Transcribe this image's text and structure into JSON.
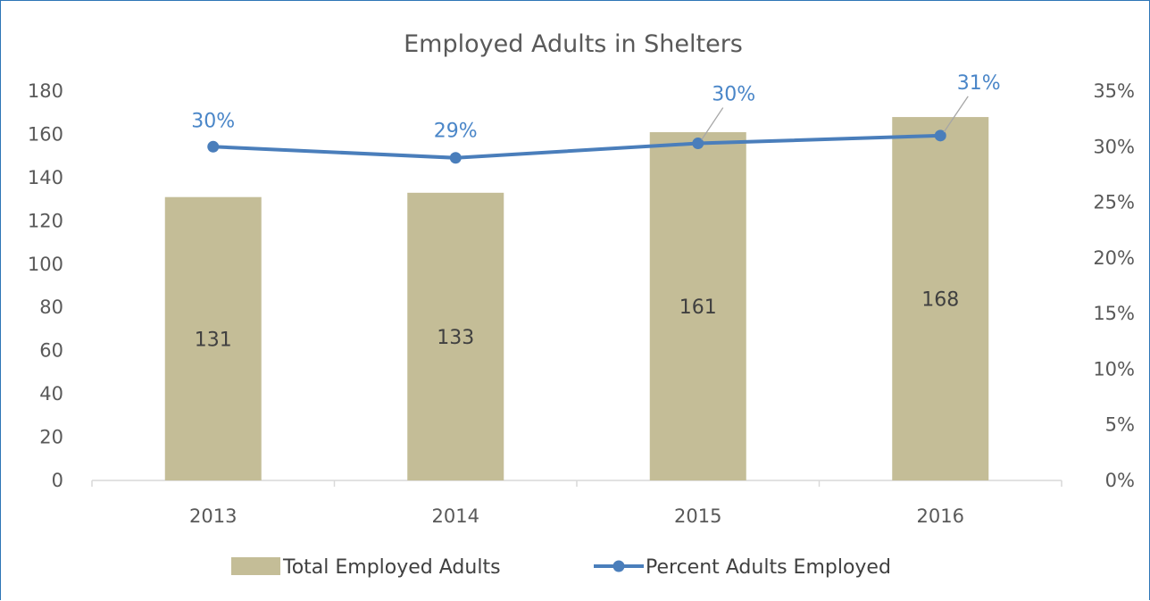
{
  "chart_data": {
    "type": "bar",
    "title": "Employed Adults in Shelters",
    "categories": [
      "2013",
      "2014",
      "2015",
      "2016"
    ],
    "series": [
      {
        "name": "Total Employed Adults",
        "kind": "bar",
        "axis": "left",
        "values": [
          131,
          133,
          161,
          168
        ],
        "labels": [
          "131",
          "133",
          "161",
          "168"
        ],
        "color": "#c4bd97"
      },
      {
        "name": "Percent Adults Employed",
        "kind": "line",
        "axis": "right",
        "values": [
          0.3,
          0.29,
          0.303,
          0.31
        ],
        "labels": [
          "30%",
          "29%",
          "30%",
          "31%"
        ],
        "color": "#4a7ebb"
      }
    ],
    "y_left": {
      "min": 0,
      "max": 180,
      "step": 20,
      "ticks": [
        "0",
        "20",
        "40",
        "60",
        "80",
        "100",
        "120",
        "140",
        "160",
        "180"
      ]
    },
    "y_right": {
      "min": 0,
      "max": 0.35,
      "step": 0.05,
      "ticks": [
        "0%",
        "5%",
        "10%",
        "15%",
        "20%",
        "25%",
        "30%",
        "35%"
      ]
    },
    "grid": false,
    "legend": "bottom",
    "label_color": "#4a86c8",
    "text_color": "#595959"
  }
}
